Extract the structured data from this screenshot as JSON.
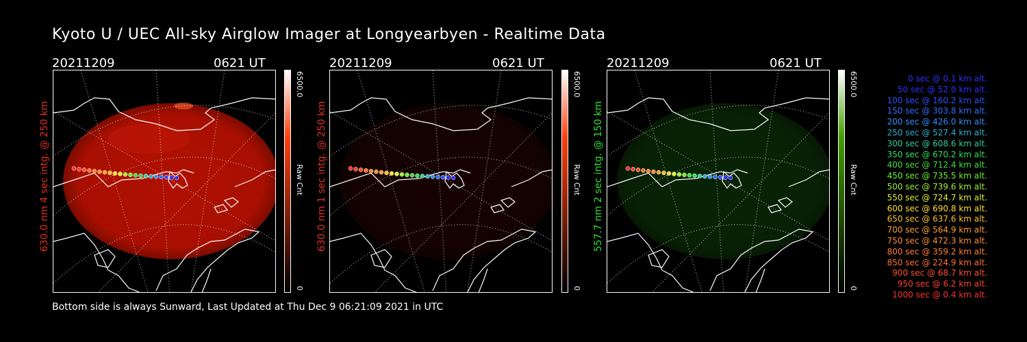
{
  "title": "Kyoto U / UEC All-sky Airglow Imager at Longyearbyen - Realtime Data",
  "footer": "Bottom side is always Sunward, Last Updated at Thu Dec  9 06:21:09 2021 in UTC",
  "panels": [
    {
      "date": "20211209",
      "time": "0621 UT",
      "side_label": "630.0 nm 4 sec intg. @ 250 km",
      "label_color": "#e03020",
      "cbar_max": "6500.0",
      "cbar_min": "0",
      "cbar_unit": "Raw Cnt",
      "cbar_color": "#ff4010",
      "glow_color": "#b01000",
      "glow_brightness": 0.75
    },
    {
      "date": "20211209",
      "time": "0621 UT",
      "side_label": "630.0 nm 1 sec intg. @ 250 km",
      "label_color": "#e03020",
      "cbar_max": "6500.0",
      "cbar_min": "0",
      "cbar_unit": "Raw Cnt",
      "cbar_color": "#ff4010",
      "glow_color": "#2a0400",
      "glow_brightness": 0.25
    },
    {
      "date": "20211209",
      "time": "0621 UT",
      "side_label": "557.7 nm 2 sec intg. @ 150 km",
      "label_color": "#30e030",
      "cbar_max": "6500.0",
      "cbar_min": "0",
      "cbar_unit": "Raw Cnt",
      "cbar_color": "#40a000",
      "glow_color": "#0e3a0a",
      "glow_brightness": 0.35
    }
  ],
  "legend": [
    {
      "text": "0 sec @    0.1 km alt.",
      "color": "#3030ff"
    },
    {
      "text": "50 sec @   52.0 km alt.",
      "color": "#3030ff"
    },
    {
      "text": "100 sec @  160.2 km alt.",
      "color": "#3050ff"
    },
    {
      "text": "150 sec @  303.8 km alt.",
      "color": "#3070ff"
    },
    {
      "text": "200 sec @  426.0 km alt.",
      "color": "#3090ff"
    },
    {
      "text": "250 sec @  527.4 km alt.",
      "color": "#30b0d0"
    },
    {
      "text": "300 sec @  608.6 km alt.",
      "color": "#30d0a0"
    },
    {
      "text": "350 sec @  670.2 km alt.",
      "color": "#30e060"
    },
    {
      "text": "400 sec @  712.4 km alt.",
      "color": "#40e040"
    },
    {
      "text": "450 sec @  735.5 km alt.",
      "color": "#70f030"
    },
    {
      "text": "500 sec @  739.6 km alt.",
      "color": "#a0f030"
    },
    {
      "text": "550 sec @  724.7 km alt.",
      "color": "#e0f030"
    },
    {
      "text": "600 sec @  690.8 km alt.",
      "color": "#ffe030"
    },
    {
      "text": "650 sec @  637.6 km alt.",
      "color": "#ffc030"
    },
    {
      "text": "700 sec @  564.9 km alt.",
      "color": "#ffa030"
    },
    {
      "text": "750 sec @  472.3 km alt.",
      "color": "#ff9030"
    },
    {
      "text": "800 sec @  359.2 km alt.",
      "color": "#ff8030"
    },
    {
      "text": "850 sec @  224.9 km alt.",
      "color": "#ff7030"
    },
    {
      "text": "900 sec @   68.7 km alt.",
      "color": "#ff5030"
    },
    {
      "text": "950 sec @    6.2 km alt.",
      "color": "#ff4030"
    },
    {
      "text": "1000 sec @    0.4 km alt.",
      "color": "#ff3030"
    }
  ]
}
